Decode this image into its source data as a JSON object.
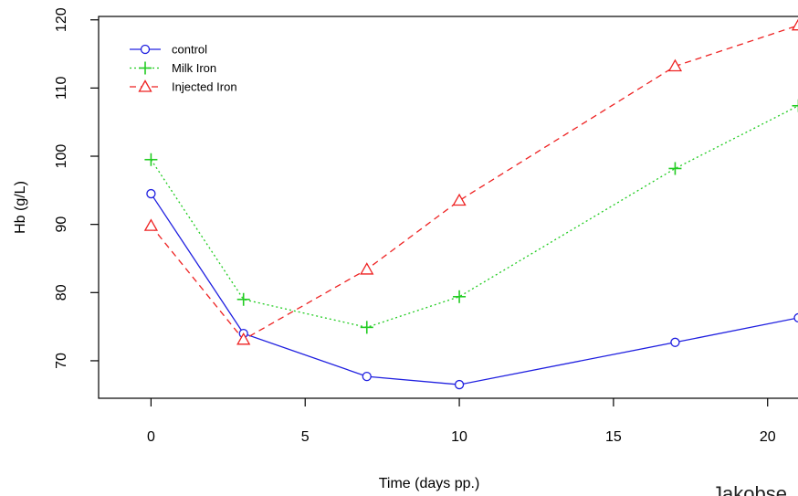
{
  "chart_data": {
    "type": "line",
    "xlabel": "Time (days pp.)",
    "ylabel": "Hb (g/L)",
    "xlim": [
      -1.7,
      21.4
    ],
    "ylim": [
      64.5,
      120.5
    ],
    "xticks": [
      0,
      5,
      10,
      15,
      20
    ],
    "yticks": [
      70,
      80,
      90,
      100,
      110,
      120
    ],
    "x": [
      0,
      3,
      7,
      10,
      17,
      21
    ],
    "legend_position": "top-left",
    "series": [
      {
        "name": "control",
        "values": [
          94.5,
          74,
          67.7,
          66.5,
          72.7,
          76.3
        ],
        "color": "#2020e0",
        "marker": "circle",
        "dash": ""
      },
      {
        "name": "Milk Iron",
        "values": [
          99.5,
          79,
          74.9,
          79.4,
          98.2,
          107.4
        ],
        "color": "#22cc22",
        "marker": "plus",
        "dash": "2,3"
      },
      {
        "name": "Injected Iron",
        "values": [
          89.8,
          73.1,
          83.4,
          93.5,
          113.2,
          119.2
        ],
        "color": "#ee2222",
        "marker": "triangle",
        "dash": "7,5"
      }
    ]
  },
  "credit_text": "Jakobse"
}
